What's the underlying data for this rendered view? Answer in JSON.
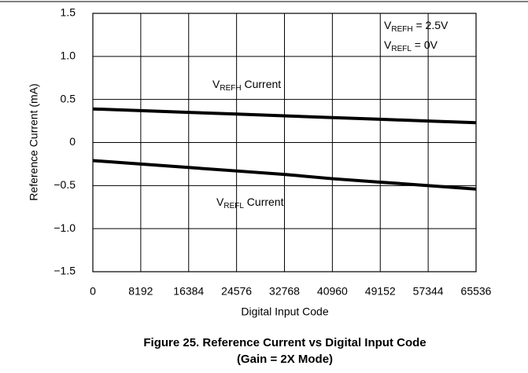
{
  "chart_data": {
    "type": "line",
    "title": [
      "Figure 25. Reference Current vs Digital Input Code",
      "(Gain = 2X Mode)"
    ],
    "xlabel": "Digital Input Code",
    "ylabel": "Reference Current (mA)",
    "x": [
      0,
      8192,
      16384,
      24576,
      32768,
      40960,
      49152,
      57344,
      65536
    ],
    "series": [
      {
        "label": [
          "V",
          "REFH",
          " Current"
        ],
        "color": "#000000",
        "values": [
          0.39,
          0.37,
          0.35,
          0.33,
          0.31,
          0.29,
          0.27,
          0.25,
          0.23
        ]
      },
      {
        "label": [
          "V",
          "REFL",
          " Current"
        ],
        "color": "#000000",
        "values": [
          -0.21,
          -0.25,
          -0.29,
          -0.33,
          -0.37,
          -0.42,
          -0.46,
          -0.5,
          -0.54
        ]
      }
    ],
    "annotations": [
      [
        "V",
        "REFH",
        " = 2.5V"
      ],
      [
        "V",
        "REFL",
        " = 0V"
      ]
    ],
    "xlim": [
      0,
      65536
    ],
    "xticks": [
      0,
      8192,
      16384,
      24576,
      32768,
      40960,
      49152,
      57344,
      65536
    ],
    "ylim": [
      -1.5,
      1.5
    ],
    "yticks": [
      {
        "value": -1.5,
        "label": "−1.5"
      },
      {
        "value": -1,
        "label": "−1.0"
      },
      {
        "value": -0.5,
        "label": "−0.5"
      },
      0,
      0.5,
      {
        "value": 1,
        "label": "1.0"
      },
      1.5
    ],
    "grid": true
  }
}
